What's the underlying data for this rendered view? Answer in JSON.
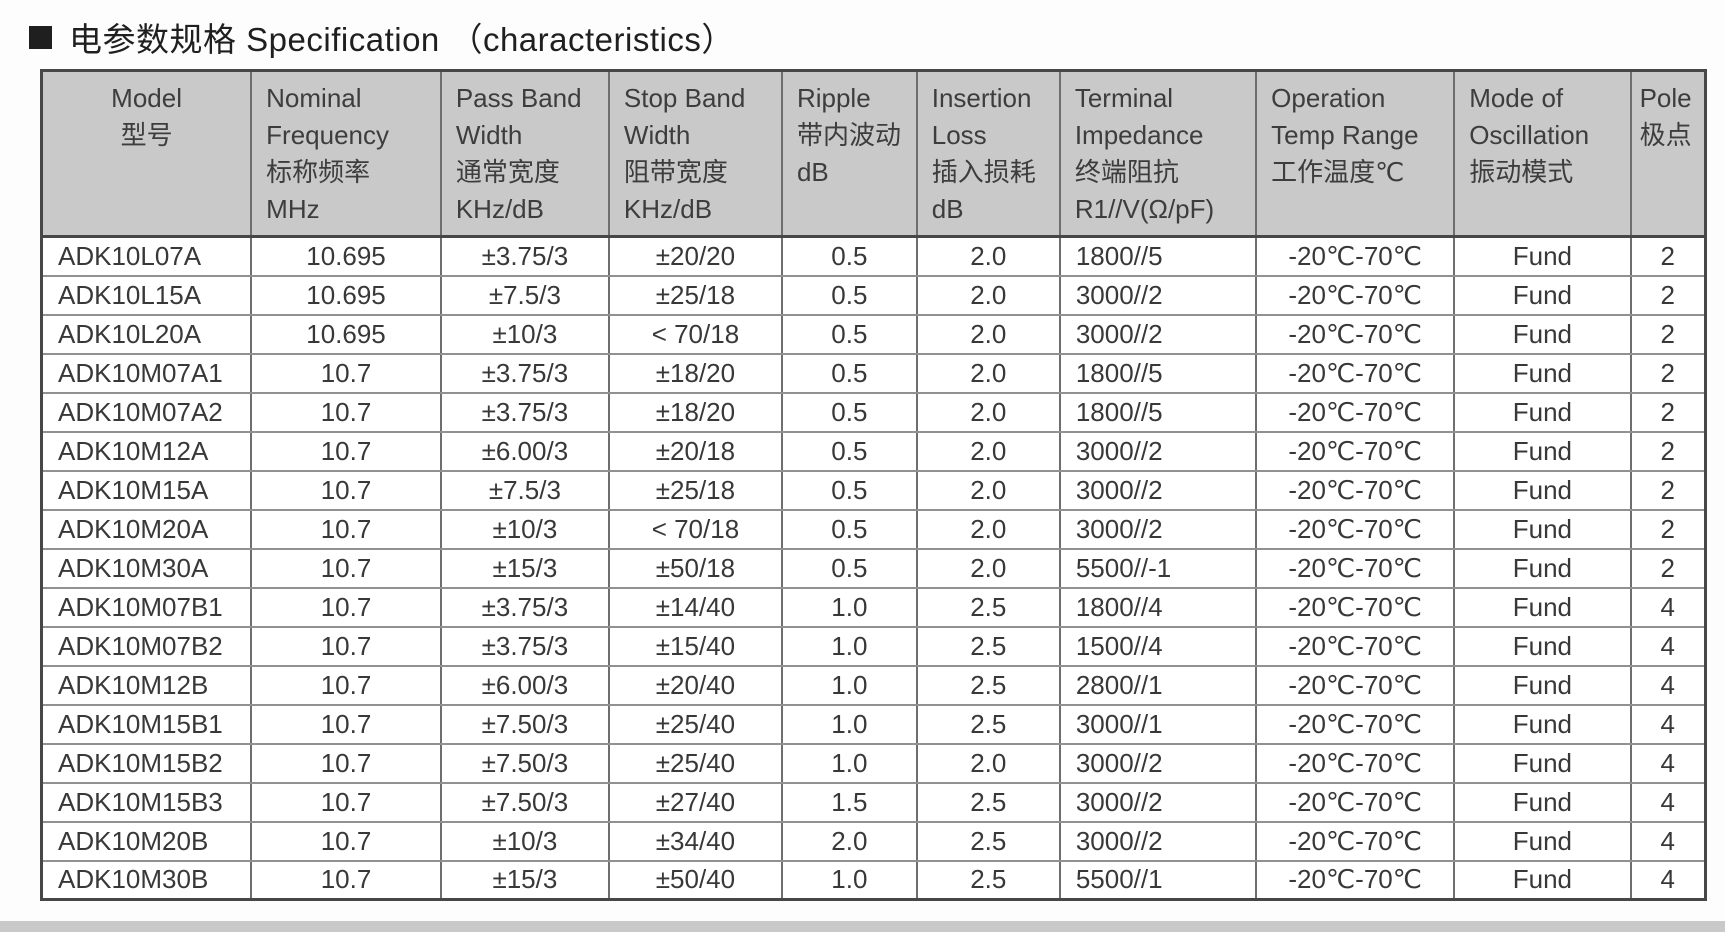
{
  "title": {
    "bullet": "■",
    "text": "电参数规格 Specification （characteristics）"
  },
  "table": {
    "columns": [
      {
        "id": "model",
        "header_lines": [
          "Model",
          "型号"
        ],
        "width": "12.6%",
        "header_align": "center",
        "data_align": "left"
      },
      {
        "id": "nominal-frequency",
        "header_lines": [
          "Nominal",
          "Frequency",
          "标称频率",
          "MHz"
        ],
        "width": "11.4%",
        "header_align": "left",
        "data_align": "center"
      },
      {
        "id": "pass-band-width",
        "header_lines": [
          "Pass Band",
          "Width",
          "通常宽度",
          "KHz/dB"
        ],
        "width": "10.1%",
        "header_align": "left",
        "data_align": "center"
      },
      {
        "id": "stop-band-width",
        "header_lines": [
          "Stop Band",
          "Width",
          "阻带宽度",
          "KHz/dB"
        ],
        "width": "10.4%",
        "header_align": "left",
        "data_align": "center"
      },
      {
        "id": "ripple",
        "header_lines": [
          "Ripple",
          "带内波动",
          "dB"
        ],
        "width": "8.1%",
        "header_align": "left",
        "data_align": "center"
      },
      {
        "id": "insertion-loss",
        "header_lines": [
          "Insertion",
          "Loss",
          "插入损耗",
          "dB"
        ],
        "width": "8.6%",
        "header_align": "left",
        "data_align": "center"
      },
      {
        "id": "terminal-impedance",
        "header_lines": [
          "Terminal",
          "Impedance",
          "终端阻抗",
          "R1//V(Ω/pF)"
        ],
        "width": "11.8%",
        "header_align": "left",
        "data_align": "left"
      },
      {
        "id": "operation-temp-range",
        "header_lines": [
          "Operation",
          "Temp Range",
          "工作温度℃"
        ],
        "width": "11.9%",
        "header_align": "left",
        "data_align": "center"
      },
      {
        "id": "mode-of-oscillation",
        "header_lines": [
          "Mode of",
          "Oscillation",
          "振动模式"
        ],
        "width": "10.6%",
        "header_align": "left",
        "data_align": "center"
      },
      {
        "id": "pole",
        "header_lines": [
          "Pole",
          "极点"
        ],
        "width": "4.5%",
        "header_align": "left",
        "data_align": "center"
      }
    ],
    "rows": [
      [
        "ADK10L07A",
        "10.695",
        "±3.75/3",
        "±20/20",
        "0.5",
        "2.0",
        "1800//5",
        "-20℃-70℃",
        "Fund",
        "2"
      ],
      [
        "ADK10L15A",
        "10.695",
        "±7.5/3",
        "±25/18",
        "0.5",
        "2.0",
        "3000//2",
        "-20℃-70℃",
        "Fund",
        "2"
      ],
      [
        "ADK10L20A",
        "10.695",
        "±10/3",
        "< 70/18",
        "0.5",
        "2.0",
        "3000//2",
        "-20℃-70℃",
        "Fund",
        "2"
      ],
      [
        "ADK10M07A1",
        "10.7",
        "±3.75/3",
        "±18/20",
        "0.5",
        "2.0",
        "1800//5",
        "-20℃-70℃",
        "Fund",
        "2"
      ],
      [
        "ADK10M07A2",
        "10.7",
        "±3.75/3",
        "±18/20",
        "0.5",
        "2.0",
        "1800//5",
        "-20℃-70℃",
        "Fund",
        "2"
      ],
      [
        "ADK10M12A",
        "10.7",
        "±6.00/3",
        "±20/18",
        "0.5",
        "2.0",
        "3000//2",
        "-20℃-70℃",
        "Fund",
        "2"
      ],
      [
        "ADK10M15A",
        "10.7",
        "±7.5/3",
        "±25/18",
        "0.5",
        "2.0",
        "3000//2",
        "-20℃-70℃",
        "Fund",
        "2"
      ],
      [
        "ADK10M20A",
        "10.7",
        "±10/3",
        "< 70/18",
        "0.5",
        "2.0",
        "3000//2",
        "-20℃-70℃",
        "Fund",
        "2"
      ],
      [
        "ADK10M30A",
        "10.7",
        "±15/3",
        "±50/18",
        "0.5",
        "2.0",
        "5500//-1",
        "-20℃-70℃",
        "Fund",
        "2"
      ],
      [
        "ADK10M07B1",
        "10.7",
        "±3.75/3",
        "±14/40",
        "1.0",
        "2.5",
        "1800//4",
        "-20℃-70℃",
        "Fund",
        "4"
      ],
      [
        "ADK10M07B2",
        "10.7",
        "±3.75/3",
        "±15/40",
        "1.0",
        "2.5",
        "1500//4",
        "-20℃-70℃",
        "Fund",
        "4"
      ],
      [
        "ADK10M12B",
        "10.7",
        "±6.00/3",
        "±20/40",
        "1.0",
        "2.5",
        "2800//1",
        "-20℃-70℃",
        "Fund",
        "4"
      ],
      [
        "ADK10M15B1",
        "10.7",
        "±7.50/3",
        "±25/40",
        "1.0",
        "2.5",
        "3000//1",
        "-20℃-70℃",
        "Fund",
        "4"
      ],
      [
        "ADK10M15B2",
        "10.7",
        "±7.50/3",
        "±25/40",
        "1.0",
        "2.0",
        "3000//2",
        "-20℃-70℃",
        "Fund",
        "4"
      ],
      [
        "ADK10M15B3",
        "10.7",
        "±7.50/3",
        "±27/40",
        "1.5",
        "2.5",
        "3000//2",
        "-20℃-70℃",
        "Fund",
        "4"
      ],
      [
        "ADK10M20B",
        "10.7",
        "±10/3",
        "±34/40",
        "2.0",
        "2.5",
        "3000//2",
        "-20℃-70℃",
        "Fund",
        "4"
      ],
      [
        "ADK10M30B",
        "10.7",
        "±15/3",
        "±50/40",
        "1.0",
        "2.5",
        "5500//1",
        "-20℃-70℃",
        "Fund",
        "4"
      ]
    ]
  },
  "colors": {
    "page_bg": "#fdfdfd",
    "header_bg": "#c9c9c9",
    "border_strong": "#474747",
    "border_vertical": "#6e6e6e",
    "border_horizontal": "#919191",
    "text": "#383838",
    "title_text": "#1f1f1f",
    "bottom_band": "#c9c9c9"
  }
}
